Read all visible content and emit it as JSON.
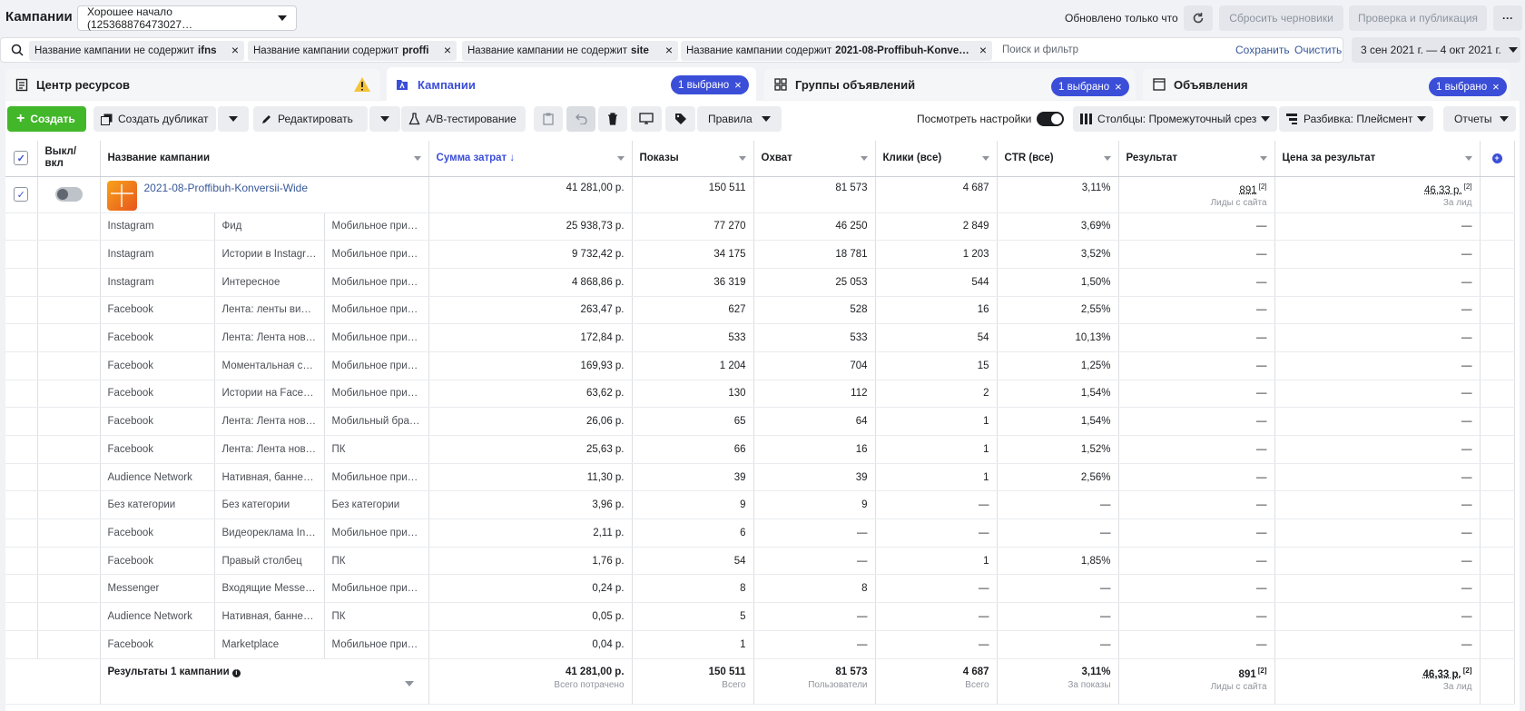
{
  "header": {
    "title": "Кампании",
    "account": "Хорошее начало (125368876473027…",
    "updated": "Обновлено только что",
    "discard_drafts": "Сбросить черновики",
    "review_publish": "Проверка и публикация",
    "more": "···"
  },
  "filters": {
    "chips": [
      {
        "label": "Название кампании не содержит",
        "value": "ifns"
      },
      {
        "label": "Название кампании содержит",
        "value": "proffi"
      },
      {
        "label": "Название кампании не содержит",
        "value": "site"
      },
      {
        "label": "Название кампании содержит",
        "value": "2021-08-Proffibuh-Konve…"
      }
    ],
    "placeholder": "Поиск и фильтр",
    "save": "Сохранить",
    "clear": "Очистить",
    "date_range": "3 сен 2021 г. — 4 окт 2021 г."
  },
  "tabs": [
    {
      "label": "Центр ресурсов"
    },
    {
      "label": "Кампании",
      "badge": "1 выбрано"
    },
    {
      "label": "Группы объявлений",
      "badge": "1 выбрано"
    },
    {
      "label": "Объявления",
      "badge": "1 выбрано"
    }
  ],
  "toolbar": {
    "create": "Создать",
    "duplicate": "Создать дубликат",
    "edit": "Редактировать",
    "ab_test": "A/B-тестирование",
    "rules": "Правила",
    "view_settings": "Посмотреть настройки",
    "columns": "Столбцы: Промежуточный срез",
    "breakdown": "Разбивка: Плейсмент",
    "reports": "Отчеты"
  },
  "table": {
    "headers": {
      "toggle": "Выкл/\nвкл",
      "name": "Название кампании",
      "spend": "Сумма затрат ↓",
      "impressions": "Показы",
      "reach": "Охват",
      "clicks": "Клики (все)",
      "ctr": "CTR (все)",
      "result": "Результат",
      "cost": "Цена за результат"
    },
    "campaign": {
      "name": "2021-08-Proffibuh-Konversii-Wide",
      "spend": "41 281,00 р.",
      "impressions": "150 511",
      "reach": "81 573",
      "clicks": "4 687",
      "ctr": "3,11%",
      "result": "891",
      "result_sup": "[2]",
      "result_sub": "Лиды с сайта",
      "cost": "46,33 р.",
      "cost_sup": "[2]",
      "cost_sub": "За лид"
    },
    "rows": [
      {
        "platform": "Instagram",
        "placement": "Фид",
        "device": "Мобильное прило…",
        "spend": "25 938,73 р.",
        "impressions": "77 270",
        "reach": "46 250",
        "clicks": "2 849",
        "ctr": "3,69%",
        "result": "—",
        "cost": "—"
      },
      {
        "platform": "Instagram",
        "placement": "Истории в Instagram",
        "device": "Мобильное прило…",
        "spend": "9 732,42 р.",
        "impressions": "34 175",
        "reach": "18 781",
        "clicks": "1 203",
        "ctr": "3,52%",
        "result": "—",
        "cost": "—"
      },
      {
        "platform": "Instagram",
        "placement": "Интересное",
        "device": "Мобильное прило…",
        "spend": "4 868,86 р.",
        "impressions": "36 319",
        "reach": "25 053",
        "clicks": "544",
        "ctr": "1,50%",
        "result": "—",
        "cost": "—"
      },
      {
        "platform": "Facebook",
        "placement": "Лента: ленты видео",
        "device": "Мобильное прило…",
        "spend": "263,47 р.",
        "impressions": "627",
        "reach": "528",
        "clicks": "16",
        "ctr": "2,55%",
        "result": "—",
        "cost": "—"
      },
      {
        "platform": "Facebook",
        "placement": "Лента: Лента новос…",
        "device": "Мобильное прило…",
        "spend": "172,84 р.",
        "impressions": "533",
        "reach": "533",
        "clicks": "54",
        "ctr": "10,13%",
        "result": "—",
        "cost": "—"
      },
      {
        "platform": "Facebook",
        "placement": "Моментальная ста…",
        "device": "Мобильное прило…",
        "spend": "169,93 р.",
        "impressions": "1 204",
        "reach": "704",
        "clicks": "15",
        "ctr": "1,25%",
        "result": "—",
        "cost": "—"
      },
      {
        "platform": "Facebook",
        "placement": "Истории на Facebook",
        "device": "Мобильное прило…",
        "spend": "63,62 р.",
        "impressions": "130",
        "reach": "112",
        "clicks": "2",
        "ctr": "1,54%",
        "result": "—",
        "cost": "—"
      },
      {
        "platform": "Facebook",
        "placement": "Лента: Лента новос…",
        "device": "Мобильный брауз…",
        "spend": "26,06 р.",
        "impressions": "65",
        "reach": "64",
        "clicks": "1",
        "ctr": "1,54%",
        "result": "—",
        "cost": "—"
      },
      {
        "platform": "Facebook",
        "placement": "Лента: Лента новос…",
        "device": "ПК",
        "spend": "25,63 р.",
        "impressions": "66",
        "reach": "16",
        "clicks": "1",
        "ctr": "1,52%",
        "result": "—",
        "cost": "—"
      },
      {
        "platform": "Audience Network",
        "placement": "Нативная, баннерн…",
        "device": "Мобильное прило…",
        "spend": "11,30 р.",
        "impressions": "39",
        "reach": "39",
        "clicks": "1",
        "ctr": "2,56%",
        "result": "—",
        "cost": "—"
      },
      {
        "platform": "Без категории",
        "placement": "Без категории",
        "device": "Без категории",
        "spend": "3,96 р.",
        "impressions": "9",
        "reach": "9",
        "clicks": "—",
        "ctr": "—",
        "result": "—",
        "cost": "—"
      },
      {
        "platform": "Facebook",
        "placement": "Видеореклама In-St…",
        "device": "Мобильное прило…",
        "spend": "2,11 р.",
        "impressions": "6",
        "reach": "—",
        "clicks": "—",
        "ctr": "—",
        "result": "—",
        "cost": "—"
      },
      {
        "platform": "Facebook",
        "placement": "Правый столбец",
        "device": "ПК",
        "spend": "1,76 р.",
        "impressions": "54",
        "reach": "—",
        "clicks": "1",
        "ctr": "1,85%",
        "result": "—",
        "cost": "—"
      },
      {
        "platform": "Messenger",
        "placement": "Входящие Messenger",
        "device": "Мобильное прило…",
        "spend": "0,24 р.",
        "impressions": "8",
        "reach": "8",
        "clicks": "—",
        "ctr": "—",
        "result": "—",
        "cost": "—"
      },
      {
        "platform": "Audience Network",
        "placement": "Нативная, баннерн…",
        "device": "ПК",
        "spend": "0,05 р.",
        "impressions": "5",
        "reach": "—",
        "clicks": "—",
        "ctr": "—",
        "result": "—",
        "cost": "—"
      },
      {
        "platform": "Facebook",
        "placement": "Marketplace",
        "device": "Мобильное прило…",
        "spend": "0,04 р.",
        "impressions": "1",
        "reach": "—",
        "clicks": "—",
        "ctr": "—",
        "result": "—",
        "cost": "—"
      }
    ],
    "totals": {
      "label": "Результаты 1 кампании",
      "spend": "41 281,00 р.",
      "spend_sub": "Всего потрачено",
      "impressions": "150 511",
      "impressions_sub": "Всего",
      "reach": "81 573",
      "reach_sub": "Пользователи",
      "clicks": "4 687",
      "clicks_sub": "Всего",
      "ctr": "3,11%",
      "ctr_sub": "За показы",
      "result": "891",
      "result_sup": "[2]",
      "result_sub": "Лиды с сайта",
      "cost": "46,33 р.",
      "cost_sup": "[2]",
      "cost_sub": "За лид"
    }
  },
  "colors": {
    "accent": "#3b4ed8",
    "create": "#42b72a",
    "warning": "#f5c33b"
  }
}
